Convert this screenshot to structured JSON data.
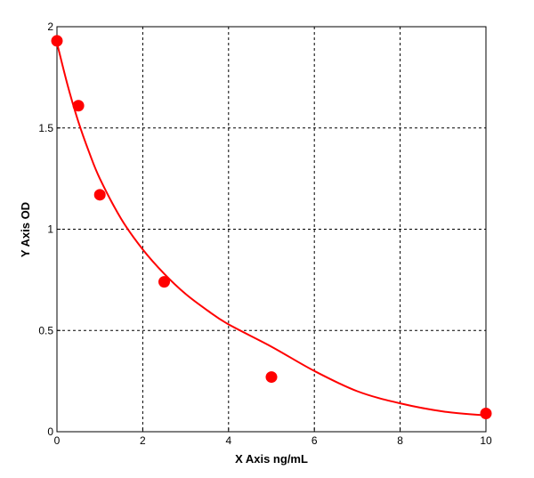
{
  "chart_data": {
    "type": "scatter",
    "title": "",
    "xlabel": "X Axis ng/mL",
    "ylabel": "Y Axis OD",
    "xlim": [
      0,
      10
    ],
    "ylim": [
      0,
      2
    ],
    "xticks": [
      "0",
      "2",
      "4",
      "6",
      "8",
      "10"
    ],
    "yticks": [
      "0",
      "0.5",
      "1",
      "1.5",
      "2"
    ],
    "grid": true,
    "colors": {
      "series": "#ff0000",
      "grid": "#000000",
      "frame": "#000000"
    },
    "series": [
      {
        "kind": "points",
        "x": [
          0,
          0.5,
          1,
          2.5,
          5,
          10
        ],
        "y": [
          1.93,
          1.61,
          1.17,
          0.74,
          0.27,
          0.09
        ]
      },
      {
        "kind": "fitted-curve",
        "x": [
          0,
          0.25,
          0.5,
          0.75,
          1,
          1.5,
          2,
          2.5,
          3,
          3.5,
          4,
          5,
          6,
          7,
          8,
          9,
          10
        ],
        "y": [
          1.92,
          1.71,
          1.53,
          1.38,
          1.25,
          1.05,
          0.9,
          0.78,
          0.68,
          0.6,
          0.53,
          0.42,
          0.3,
          0.2,
          0.14,
          0.1,
          0.08
        ]
      }
    ]
  }
}
